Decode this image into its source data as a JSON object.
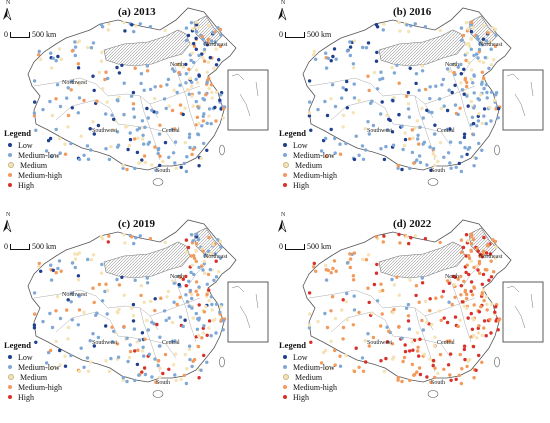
{
  "legend_title": "Legend",
  "scale_label": "500 km",
  "scale_zero": "0",
  "north_label": "N",
  "regions": {
    "northwest": "Northwest",
    "north": "North",
    "northeast": "Northeast",
    "southwest": "Southwest",
    "central": "Central",
    "south": "South"
  },
  "classes": [
    {
      "label": "Low",
      "color": "#1f3f8f"
    },
    {
      "label": "Medium-low",
      "color": "#7fa8d6"
    },
    {
      "label": "Medium",
      "color": "#f6e3b5"
    },
    {
      "label": "Medium-high",
      "color": "#f29a5c"
    },
    {
      "label": "High",
      "color": "#d9302a"
    }
  ],
  "panels": [
    {
      "title": "(a) 2013",
      "dist": [
        0.18,
        0.4,
        0.2,
        0.16,
        0.06
      ]
    },
    {
      "title": "(b) 2016",
      "dist": [
        0.22,
        0.42,
        0.18,
        0.14,
        0.04
      ]
    },
    {
      "title": "(c) 2019",
      "dist": [
        0.14,
        0.36,
        0.22,
        0.18,
        0.1
      ]
    },
    {
      "title": "(d) 2022",
      "dist": [
        0.04,
        0.16,
        0.22,
        0.34,
        0.24
      ]
    }
  ]
}
